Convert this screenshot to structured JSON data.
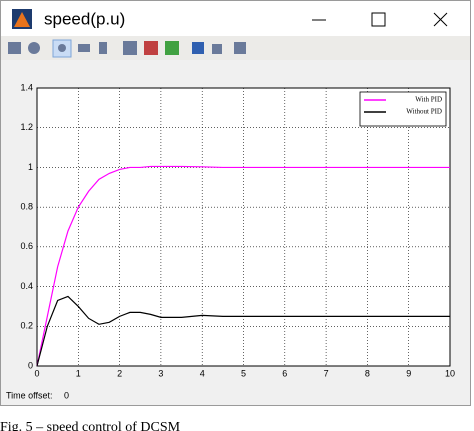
{
  "window": {
    "title": "speed(p.u)"
  },
  "chart_data": {
    "type": "line",
    "x": [
      0,
      0.25,
      0.5,
      0.75,
      1,
      1.25,
      1.5,
      1.75,
      2,
      2.25,
      2.5,
      2.75,
      3,
      3.5,
      4,
      4.5,
      5,
      6,
      7,
      8,
      9,
      10
    ],
    "series": [
      {
        "name": "With PID",
        "color": "#ff00ff",
        "values": [
          0,
          0.25,
          0.5,
          0.68,
          0.8,
          0.88,
          0.94,
          0.97,
          0.99,
          1.0,
          1.0,
          1.005,
          1.005,
          1.005,
          1.003,
          1.0,
          1.0,
          1.0,
          1.0,
          1.0,
          1.0,
          1.0
        ]
      },
      {
        "name": "Without PID",
        "color": "#000000",
        "values": [
          0,
          0.2,
          0.33,
          0.35,
          0.3,
          0.24,
          0.21,
          0.22,
          0.25,
          0.27,
          0.27,
          0.26,
          0.245,
          0.245,
          0.255,
          0.25,
          0.25,
          0.25,
          0.25,
          0.25,
          0.25,
          0.25
        ]
      }
    ],
    "xlim": [
      0,
      10
    ],
    "xticks": [
      0,
      1,
      2,
      3,
      4,
      5,
      6,
      7,
      8,
      9,
      10
    ],
    "ylim": [
      0,
      1.4
    ],
    "yticks": [
      0,
      0.2,
      0.4,
      0.6,
      0.8,
      1,
      1.2,
      1.4
    ],
    "grid": true,
    "legend": "top-right"
  },
  "status": {
    "label": "Time offset:",
    "value": 0
  },
  "caption": "Fig. 5 – speed control of DCSM"
}
